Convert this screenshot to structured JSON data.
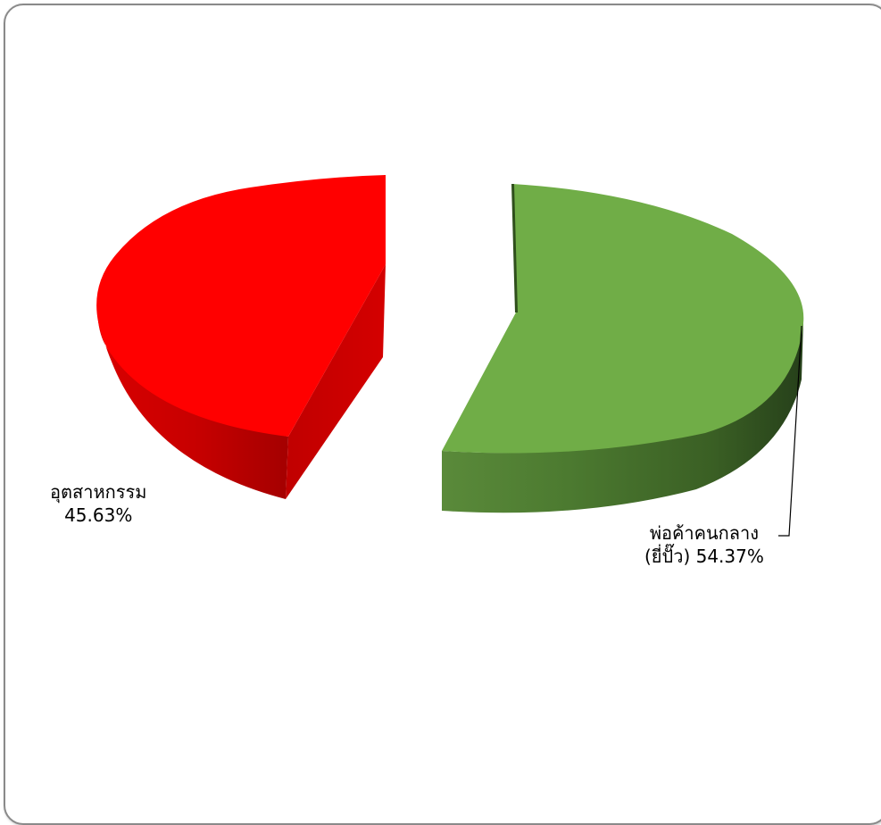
{
  "chart_data": {
    "type": "pie",
    "style": "3d-exploded",
    "slices": [
      {
        "label": "อุตสาหกรรม",
        "value": 45.63,
        "value_text": "45.63%",
        "color": "#ff0000",
        "side_color": "#c00000"
      },
      {
        "label_line1": "พ่อค้าคนกลาง",
        "label_line2": "(ยี่ปั๊ว)",
        "value": 54.37,
        "value_text": "54.37%",
        "color": "#70ad47",
        "side_color": "#3f6b28"
      }
    ],
    "title": "",
    "legend": "none"
  }
}
